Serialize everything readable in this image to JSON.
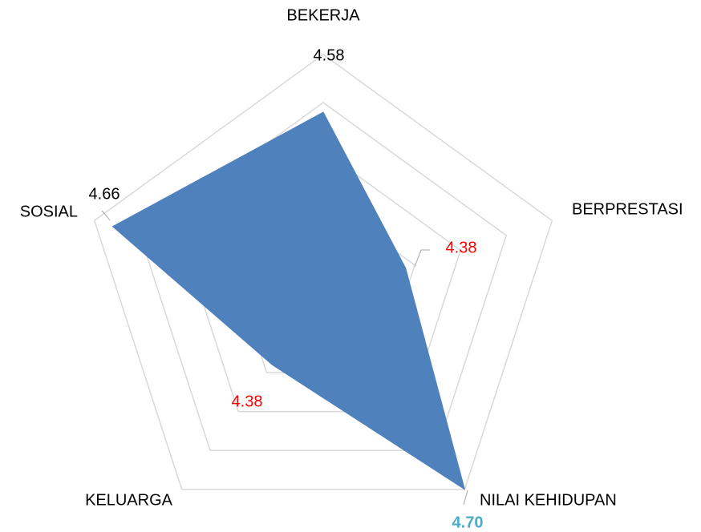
{
  "chart_data": {
    "type": "radar",
    "categories": [
      "BEKERJA",
      "BERPRESTASI",
      "NILAI KEHIDUPAN",
      "KELUARGA",
      "SOSIAL"
    ],
    "values": [
      4.58,
      4.38,
      4.7,
      4.38,
      4.66
    ],
    "value_labels": [
      "4.58",
      "4.38",
      "4.70",
      "4.38",
      "4.66"
    ],
    "value_label_colors": [
      "#000000",
      "#ff0000",
      "#4bacc6",
      "#ff0000",
      "#000000"
    ],
    "color": "#4f81bd",
    "ylim": [
      4.2,
      4.7
    ],
    "yticks": [
      4.2,
      4.3,
      4.4,
      4.5,
      4.6,
      4.7
    ],
    "grid": true,
    "grid_color": "#d9d9d9"
  }
}
